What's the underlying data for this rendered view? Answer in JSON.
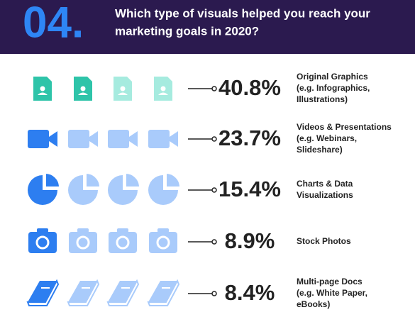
{
  "header": {
    "number": "04.",
    "title_lines": [
      "Which type of visuals helped you reach your",
      "marketing goals in 2020?"
    ]
  },
  "rows": [
    {
      "percent": "40.8%",
      "label_lines": [
        "Original Graphics",
        "(e.g. Infographics,",
        "Illustrations)"
      ]
    },
    {
      "percent": "23.7%",
      "label_lines": [
        "Videos & Presentations",
        "(e.g. Webinars,",
        "Slideshare)"
      ]
    },
    {
      "percent": "15.4%",
      "label_lines": [
        "Charts & Data",
        "Visualizations"
      ]
    },
    {
      "percent": "8.9%",
      "label_lines": [
        "Stock Photos"
      ]
    },
    {
      "percent": "8.4%",
      "label_lines": [
        "Multi-page Docs",
        "(e.g. White Paper,",
        "eBooks)"
      ]
    }
  ]
}
